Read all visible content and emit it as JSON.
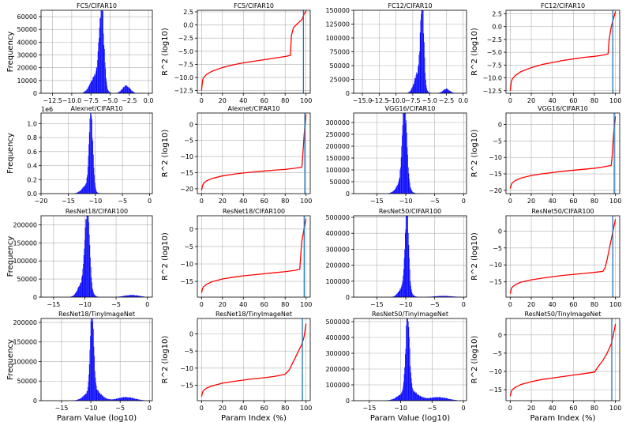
{
  "chart_data": [
    {
      "type": "bar",
      "title": "FC5/CIFAR10",
      "xlabel": "",
      "ylabel": "Frequency",
      "xlim": [
        -14,
        0.5
      ],
      "ylim": [
        0,
        65000
      ],
      "xticks": [
        -12.5,
        -10.0,
        -7.5,
        -5.0,
        -2.5,
        0.0
      ],
      "xtick_labels": [
        "−12.5",
        "−10.0",
        "−7.5",
        "−5.0",
        "−2.5",
        "0.0"
      ],
      "yticks": [
        0,
        10000,
        20000,
        30000,
        40000,
        50000,
        60000
      ],
      "ytick_labels": [
        "0",
        "10000",
        "20000",
        "30000",
        "40000",
        "50000",
        "60000"
      ],
      "peaks": [
        {
          "mu": -6.1,
          "sigma": 0.3,
          "amp": 62000
        },
        {
          "mu": -6.8,
          "sigma": 0.7,
          "amp": 14000
        },
        {
          "mu": -2.9,
          "sigma": 0.5,
          "amp": 6000
        }
      ],
      "range": [
        -8.5,
        -1.0
      ]
    },
    {
      "type": "line",
      "title": "FC5/CIFAR10",
      "xlabel": "",
      "ylabel": "R^2 (log10)",
      "xlim": [
        -4,
        104
      ],
      "ylim": [
        -13,
        2.8
      ],
      "xticks": [
        0,
        20,
        40,
        60,
        80,
        100
      ],
      "xtick_labels": [
        "0",
        "20",
        "40",
        "60",
        "80",
        "100"
      ],
      "yticks": [
        -12.5,
        -10.0,
        -7.5,
        -5.0,
        -2.5,
        0.0,
        2.5
      ],
      "ytick_labels": [
        "−12.5",
        "−10.0",
        "−7.5",
        "−5.0",
        "−2.5",
        "0.0",
        "2.5"
      ],
      "series": [
        {
          "x": [
            0,
            1,
            2,
            5,
            10,
            20,
            30,
            40,
            50,
            60,
            70,
            80,
            85,
            86,
            88,
            92,
            96,
            98,
            100
          ],
          "y": [
            -12.5,
            -10.5,
            -10.0,
            -9.4,
            -8.8,
            -8.1,
            -7.6,
            -7.2,
            -6.9,
            -6.6,
            -6.3,
            -6.0,
            -5.8,
            -2.0,
            -0.5,
            0.3,
            1.0,
            2.0,
            2.7
          ]
        }
      ],
      "vline": 97.5
    },
    {
      "type": "bar",
      "title": "FC12/CIFAR10",
      "xlabel": "",
      "ylabel": "",
      "xlim": [
        -16.3,
        0.5
      ],
      "ylim": [
        0,
        150000
      ],
      "xticks": [
        -15.0,
        -12.5,
        -10.0,
        -7.5,
        -5.0,
        -2.5,
        0.0
      ],
      "xtick_labels": [
        "−15.0",
        "−12.5",
        "−10.0",
        "−7.5",
        "−5.0",
        "−2.5",
        "0.0"
      ],
      "yticks": [
        0,
        25000,
        50000,
        75000,
        100000,
        125000,
        150000
      ],
      "ytick_labels": [
        "0",
        "25000",
        "50000",
        "75000",
        "100000",
        "125000",
        "150000"
      ],
      "peaks": [
        {
          "mu": -6.1,
          "sigma": 0.25,
          "amp": 145000
        },
        {
          "mu": -6.6,
          "sigma": 0.6,
          "amp": 40000
        },
        {
          "mu": -2.5,
          "sigma": 0.5,
          "amp": 8000
        }
      ],
      "range": [
        -8.5,
        -1.0
      ]
    },
    {
      "type": "line",
      "title": "FC12/CIFAR10",
      "xlabel": "",
      "ylabel": "R^2 (log10)",
      "xlim": [
        -4,
        104
      ],
      "ylim": [
        -13,
        3.2
      ],
      "xticks": [
        0,
        20,
        40,
        60,
        80,
        100
      ],
      "xtick_labels": [
        "0",
        "20",
        "40",
        "60",
        "80",
        "100"
      ],
      "yticks": [
        -12.5,
        -10.0,
        -7.5,
        -5.0,
        -2.5,
        0.0,
        2.5
      ],
      "ytick_labels": [
        "−12.5",
        "−10.0",
        "−7.5",
        "−5.0",
        "−2.5",
        "0.0",
        "2.5"
      ],
      "series": [
        {
          "x": [
            0,
            1,
            2,
            5,
            10,
            20,
            30,
            40,
            50,
            60,
            70,
            80,
            90,
            93,
            94,
            96,
            98,
            100
          ],
          "y": [
            -12.5,
            -10.8,
            -10.2,
            -9.5,
            -8.8,
            -8.0,
            -7.4,
            -7.0,
            -6.6,
            -6.3,
            -6.0,
            -5.8,
            -5.5,
            -5.3,
            -2.5,
            0.0,
            1.5,
            3.0
          ]
        }
      ],
      "vline": 97.5
    },
    {
      "type": "bar",
      "title": "Alexnet/CIFAR10",
      "xlabel": "",
      "ylabel": "Frequency",
      "xlim": [
        -20,
        0.5
      ],
      "ylim": [
        0,
        1150000
      ],
      "offset_text": "1e6",
      "xticks": [
        -20,
        -15,
        -10,
        -5,
        0
      ],
      "xtick_labels": [
        "−20",
        "−15",
        "−10",
        "−5",
        "0"
      ],
      "yticks": [
        0,
        200000,
        400000,
        600000,
        800000,
        1000000
      ],
      "ytick_labels": [
        "0.0",
        "0.2",
        "0.4",
        "0.6",
        "0.8",
        "1.0"
      ],
      "peaks": [
        {
          "mu": -10.8,
          "sigma": 0.35,
          "amp": 1050000
        },
        {
          "mu": -11.5,
          "sigma": 0.9,
          "amp": 120000
        }
      ],
      "range": [
        -15.5,
        -6.0
      ]
    },
    {
      "type": "line",
      "title": "Alexnet/CIFAR10",
      "xlabel": "",
      "ylabel": "R^2 (log10)",
      "xlim": [
        -4,
        104
      ],
      "ylim": [
        -21.5,
        3.5
      ],
      "xticks": [
        0,
        20,
        40,
        60,
        80,
        100
      ],
      "xtick_labels": [
        "0",
        "20",
        "40",
        "60",
        "80",
        "100"
      ],
      "yticks": [
        -20,
        -15,
        -10,
        -5,
        0
      ],
      "ytick_labels": [
        "−20",
        "−15",
        "−10",
        "−5",
        "0"
      ],
      "series": [
        {
          "x": [
            0,
            1,
            2,
            5,
            10,
            20,
            30,
            40,
            50,
            60,
            70,
            80,
            90,
            96,
            97,
            98,
            99,
            100
          ],
          "y": [
            -20.5,
            -19.0,
            -18.3,
            -17.5,
            -16.8,
            -16.0,
            -15.5,
            -15.1,
            -14.8,
            -14.5,
            -14.2,
            -14.0,
            -13.6,
            -13.3,
            -9.0,
            -4.0,
            0.0,
            3.0
          ]
        }
      ],
      "vline": 98.8
    },
    {
      "type": "bar",
      "title": "VGG16/CIFAR10",
      "xlabel": "",
      "ylabel": "",
      "xlim": [
        -19,
        0.5
      ],
      "ylim": [
        0,
        340000
      ],
      "xticks": [
        -15,
        -10,
        -5,
        0
      ],
      "xtick_labels": [
        "−15",
        "−10",
        "−5",
        "0"
      ],
      "yticks": [
        0,
        50000,
        100000,
        150000,
        200000,
        250000,
        300000
      ],
      "ytick_labels": [
        "0",
        "50000",
        "100000",
        "150000",
        "200000",
        "250000",
        "300000"
      ],
      "peaks": [
        {
          "mu": -10.2,
          "sigma": 0.4,
          "amp": 320000
        },
        {
          "mu": -10.6,
          "sigma": 0.9,
          "amp": 50000
        }
      ],
      "range": [
        -14.5,
        -5.0
      ]
    },
    {
      "type": "line",
      "title": "VGG16/CIFAR10",
      "xlabel": "",
      "ylabel": "R^2 (log10)",
      "xlim": [
        -4,
        104
      ],
      "ylim": [
        -21,
        3.5
      ],
      "xticks": [
        0,
        20,
        40,
        60,
        80,
        100
      ],
      "xtick_labels": [
        "0",
        "20",
        "40",
        "60",
        "80",
        "100"
      ],
      "yticks": [
        -20,
        -15,
        -10,
        -5,
        0
      ],
      "ytick_labels": [
        "−20",
        "−15",
        "−10",
        "−5",
        "0"
      ],
      "series": [
        {
          "x": [
            0,
            1,
            2,
            5,
            10,
            20,
            30,
            40,
            50,
            60,
            70,
            80,
            90,
            96,
            97,
            98,
            99,
            100
          ],
          "y": [
            -19.5,
            -18.3,
            -17.7,
            -17.0,
            -16.3,
            -15.5,
            -15.0,
            -14.6,
            -14.2,
            -13.9,
            -13.6,
            -13.3,
            -12.8,
            -12.4,
            -9.0,
            -4.0,
            0.0,
            2.5
          ]
        }
      ],
      "vline": 98.8
    },
    {
      "type": "bar",
      "title": "ResNet18/CIFAR100",
      "xlabel": "",
      "ylabel": "Frequency",
      "xlim": [
        -17,
        0.8
      ],
      "ylim": [
        0,
        225000
      ],
      "xticks": [
        -15,
        -10,
        -5,
        0
      ],
      "xtick_labels": [
        "−15",
        "−10",
        "−5",
        "0"
      ],
      "yticks": [
        0,
        50000,
        100000,
        150000,
        200000
      ],
      "ytick_labels": [
        "0",
        "50000",
        "100000",
        "150000",
        "200000"
      ],
      "peaks": [
        {
          "mu": -9.6,
          "sigma": 0.35,
          "amp": 210000
        },
        {
          "mu": -10.1,
          "sigma": 0.8,
          "amp": 50000
        },
        {
          "mu": -2.5,
          "sigma": 1.2,
          "amp": 6000
        }
      ],
      "range": [
        -13.5,
        -0.5
      ]
    },
    {
      "type": "line",
      "title": "ResNet18/CIFAR100",
      "xlabel": "",
      "ylabel": "R^2 (log10)",
      "xlim": [
        -4,
        104
      ],
      "ylim": [
        -19.5,
        3.8
      ],
      "xticks": [
        0,
        20,
        40,
        60,
        80,
        100
      ],
      "xtick_labels": [
        "0",
        "20",
        "40",
        "60",
        "80",
        "100"
      ],
      "yticks": [
        -15,
        -10,
        -5,
        0
      ],
      "ytick_labels": [
        "−15",
        "−10",
        "−5",
        "0"
      ],
      "series": [
        {
          "x": [
            0,
            1,
            2,
            5,
            10,
            20,
            30,
            40,
            50,
            60,
            70,
            80,
            90,
            94,
            95,
            96,
            98,
            100
          ],
          "y": [
            -18.3,
            -17.0,
            -16.5,
            -15.8,
            -15.1,
            -14.3,
            -13.8,
            -13.4,
            -13.1,
            -12.8,
            -12.5,
            -12.2,
            -11.8,
            -11.5,
            -7.0,
            -3.5,
            0.0,
            3.0
          ]
        }
      ],
      "vline": 98.2
    },
    {
      "type": "bar",
      "title": "ResNet50/CIFAR100",
      "xlabel": "",
      "ylabel": "",
      "xlim": [
        -19,
        0.5
      ],
      "ylim": [
        0,
        510000
      ],
      "xticks": [
        -15,
        -10,
        -5,
        0
      ],
      "xtick_labels": [
        "−15",
        "−10",
        "−5",
        "0"
      ],
      "yticks": [
        0,
        100000,
        200000,
        300000,
        400000,
        500000
      ],
      "ytick_labels": [
        "0",
        "100000",
        "200000",
        "300000",
        "400000",
        "500000"
      ],
      "peaks": [
        {
          "mu": -9.8,
          "sigma": 0.3,
          "amp": 490000
        },
        {
          "mu": -10.2,
          "sigma": 0.8,
          "amp": 80000
        },
        {
          "mu": -3.5,
          "sigma": 1.5,
          "amp": 8000
        }
      ],
      "range": [
        -14.0,
        -0.5
      ]
    },
    {
      "type": "line",
      "title": "ResNet50/CIFAR100",
      "xlabel": "",
      "ylabel": "R^2 (log10)",
      "xlim": [
        -4,
        104
      ],
      "ylim": [
        -19.5,
        4.5
      ],
      "xticks": [
        0,
        20,
        40,
        60,
        80,
        100
      ],
      "xtick_labels": [
        "0",
        "20",
        "40",
        "60",
        "80",
        "100"
      ],
      "yticks": [
        -15,
        -10,
        -5,
        0
      ],
      "ytick_labels": [
        "−15",
        "−10",
        "−5",
        "0"
      ],
      "series": [
        {
          "x": [
            0,
            1,
            2,
            5,
            10,
            20,
            30,
            40,
            50,
            60,
            70,
            80,
            88,
            90,
            92,
            94,
            96,
            98,
            100
          ],
          "y": [
            -18.5,
            -17.0,
            -16.5,
            -15.8,
            -15.1,
            -14.4,
            -13.9,
            -13.5,
            -13.1,
            -12.8,
            -12.5,
            -12.2,
            -11.9,
            -11.0,
            -8.5,
            -5.5,
            -2.5,
            0.5,
            3.5
          ]
        }
      ],
      "vline": 97.5
    },
    {
      "type": "bar",
      "title": "ResNet18/TinyImageNet",
      "xlabel": "Param Value (log10)",
      "ylabel": "Frequency",
      "xlim": [
        -18.5,
        0.5
      ],
      "ylim": [
        0,
        210000
      ],
      "xticks": [
        -15,
        -10,
        -5,
        0
      ],
      "xtick_labels": [
        "−15",
        "−10",
        "−5",
        "0"
      ],
      "yticks": [
        0,
        50000,
        100000,
        150000,
        200000
      ],
      "ytick_labels": [
        "0",
        "50000",
        "100000",
        "150000",
        "200000"
      ],
      "peaks": [
        {
          "mu": -9.8,
          "sigma": 0.3,
          "amp": 195000
        },
        {
          "mu": -9.6,
          "sigma": 1.2,
          "amp": 30000
        },
        {
          "mu": -4.0,
          "sigma": 1.5,
          "amp": 9000
        }
      ],
      "range": [
        -14.0,
        -1.0
      ]
    },
    {
      "type": "line",
      "title": "ResNet18/TinyImageNet",
      "xlabel": "Param Index (%)",
      "ylabel": "R^2 (log10)",
      "xlim": [
        -4,
        104
      ],
      "ylim": [
        -19.5,
        4.5
      ],
      "xticks": [
        0,
        20,
        40,
        60,
        80,
        100
      ],
      "xtick_labels": [
        "0",
        "20",
        "40",
        "60",
        "80",
        "100"
      ],
      "yticks": [
        -15,
        -10,
        -5,
        0
      ],
      "ytick_labels": [
        "−15",
        "−10",
        "−5",
        "0"
      ],
      "series": [
        {
          "x": [
            0,
            1,
            2,
            5,
            10,
            20,
            30,
            40,
            50,
            60,
            70,
            80,
            84,
            88,
            92,
            96,
            98,
            100
          ],
          "y": [
            -18.3,
            -17.0,
            -16.5,
            -15.8,
            -15.2,
            -14.4,
            -13.9,
            -13.5,
            -13.1,
            -12.8,
            -12.4,
            -11.8,
            -10.5,
            -8.0,
            -5.5,
            -3.0,
            -1.0,
            3.0
          ]
        }
      ],
      "vline": 96.5
    },
    {
      "type": "bar",
      "title": "ResNet50/TinyImageNet",
      "xlabel": "Param Value (log10)",
      "ylabel": "",
      "xlim": [
        -17.5,
        0.5
      ],
      "ylim": [
        0,
        520000
      ],
      "xticks": [
        -15,
        -10,
        -5,
        0
      ],
      "xtick_labels": [
        "−15",
        "−10",
        "−5",
        "0"
      ],
      "yticks": [
        0,
        100000,
        200000,
        300000,
        400000,
        500000
      ],
      "ytick_labels": [
        "0",
        "100000",
        "200000",
        "300000",
        "400000",
        "500000"
      ],
      "peaks": [
        {
          "mu": -8.9,
          "sigma": 0.3,
          "amp": 480000
        },
        {
          "mu": -8.7,
          "sigma": 1.3,
          "amp": 70000
        },
        {
          "mu": -4.0,
          "sigma": 1.5,
          "amp": 22000
        }
      ],
      "range": [
        -12.5,
        -1.0
      ]
    },
    {
      "type": "line",
      "title": "ResNet50/TinyImageNet",
      "xlabel": "Param Index (%)",
      "ylabel": "R^2 (log10)",
      "xlim": [
        -4,
        104
      ],
      "ylim": [
        -18,
        4.5
      ],
      "xticks": [
        0,
        20,
        40,
        60,
        80,
        100
      ],
      "xtick_labels": [
        "0",
        "20",
        "40",
        "60",
        "80",
        "100"
      ],
      "yticks": [
        -15,
        -10,
        -5,
        0
      ],
      "ytick_labels": [
        "−15",
        "−10",
        "−5",
        "0"
      ],
      "series": [
        {
          "x": [
            0,
            1,
            2,
            5,
            10,
            20,
            30,
            40,
            50,
            60,
            70,
            80,
            84,
            88,
            92,
            96,
            98,
            100
          ],
          "y": [
            -16.8,
            -15.5,
            -15.0,
            -14.3,
            -13.6,
            -12.8,
            -12.2,
            -11.8,
            -11.4,
            -11.0,
            -10.6,
            -10.2,
            -8.5,
            -7.0,
            -5.0,
            -2.5,
            0.0,
            3.0
          ]
        }
      ],
      "vline": 96.5
    }
  ]
}
